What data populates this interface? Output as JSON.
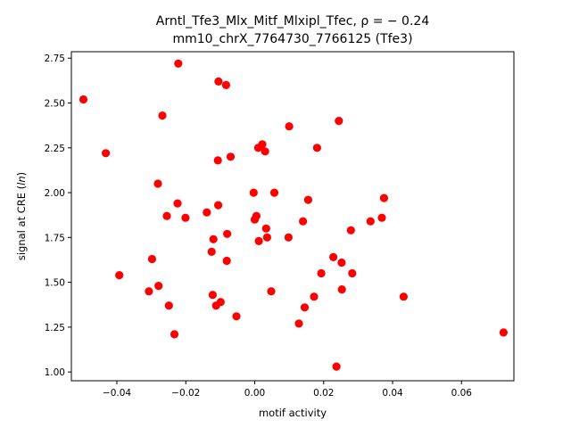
{
  "chart_data": {
    "type": "scatter",
    "title_line1": "Arntl_Tfe3_Mlx_Mitf_Mlxipl_Tfec, ρ = − 0.24",
    "title_line2": "mm10_chrX_7764730_7766125 (Tfe3)",
    "xlabel": "motif activity",
    "ylabel_prefix": "signal at CRE (",
    "ylabel_italic": "ln",
    "ylabel_suffix": ")",
    "xlim": [
      -0.0532,
      0.0752
    ],
    "ylim": [
      0.951,
      2.786
    ],
    "xticks": [
      -0.04,
      -0.02,
      0.0,
      0.02,
      0.04,
      0.06
    ],
    "xtick_labels": [
      "−0.04",
      "−0.02",
      "0.00",
      "0.02",
      "0.04",
      "0.06"
    ],
    "yticks": [
      1.0,
      1.25,
      1.5,
      1.75,
      2.0,
      2.25,
      2.5,
      2.75
    ],
    "ytick_labels": [
      "1.00",
      "1.25",
      "1.50",
      "1.75",
      "2.00",
      "2.25",
      "2.50",
      "2.75"
    ],
    "marker_color": "#ff0000",
    "grid": false,
    "points": [
      {
        "x": -0.0497,
        "y": 2.52
      },
      {
        "x": -0.0432,
        "y": 2.22
      },
      {
        "x": -0.0393,
        "y": 1.54
      },
      {
        "x": -0.0307,
        "y": 1.45
      },
      {
        "x": -0.0298,
        "y": 1.63
      },
      {
        "x": -0.0281,
        "y": 2.05
      },
      {
        "x": -0.0279,
        "y": 1.48
      },
      {
        "x": -0.0268,
        "y": 2.43
      },
      {
        "x": -0.0255,
        "y": 1.87
      },
      {
        "x": -0.0249,
        "y": 1.37
      },
      {
        "x": -0.0233,
        "y": 1.21
      },
      {
        "x": -0.0222,
        "y": 2.72
      },
      {
        "x": -0.0224,
        "y": 1.94
      },
      {
        "x": -0.0201,
        "y": 1.86
      },
      {
        "x": -0.0139,
        "y": 1.89
      },
      {
        "x": -0.0125,
        "y": 1.67
      },
      {
        "x": -0.0122,
        "y": 1.43
      },
      {
        "x": -0.012,
        "y": 1.74
      },
      {
        "x": -0.0112,
        "y": 1.37
      },
      {
        "x": -0.0107,
        "y": 2.18
      },
      {
        "x": -0.0105,
        "y": 2.62
      },
      {
        "x": -0.0106,
        "y": 1.93
      },
      {
        "x": -0.0099,
        "y": 1.39
      },
      {
        "x": -0.0083,
        "y": 2.6
      },
      {
        "x": -0.0081,
        "y": 1.62
      },
      {
        "x": -0.008,
        "y": 1.77
      },
      {
        "x": -0.007,
        "y": 2.2
      },
      {
        "x": -0.0053,
        "y": 1.31
      },
      {
        "x": -0.0003,
        "y": 2.0
      },
      {
        "x": 0.0,
        "y": 1.85
      },
      {
        "x": 0.0005,
        "y": 1.87
      },
      {
        "x": 0.001,
        "y": 2.25
      },
      {
        "x": 0.0012,
        "y": 1.73
      },
      {
        "x": 0.0022,
        "y": 2.27
      },
      {
        "x": 0.003,
        "y": 2.23
      },
      {
        "x": 0.0033,
        "y": 1.8
      },
      {
        "x": 0.0036,
        "y": 1.75
      },
      {
        "x": 0.0048,
        "y": 1.45
      },
      {
        "x": 0.0057,
        "y": 2.0
      },
      {
        "x": 0.0098,
        "y": 1.75
      },
      {
        "x": 0.01,
        "y": 2.37
      },
      {
        "x": 0.0128,
        "y": 1.27
      },
      {
        "x": 0.014,
        "y": 1.84
      },
      {
        "x": 0.0145,
        "y": 1.36
      },
      {
        "x": 0.0155,
        "y": 1.96
      },
      {
        "x": 0.0172,
        "y": 1.42
      },
      {
        "x": 0.0181,
        "y": 2.25
      },
      {
        "x": 0.0193,
        "y": 1.55
      },
      {
        "x": 0.0228,
        "y": 1.64
      },
      {
        "x": 0.0237,
        "y": 1.03
      },
      {
        "x": 0.0244,
        "y": 2.4
      },
      {
        "x": 0.0252,
        "y": 1.61
      },
      {
        "x": 0.0253,
        "y": 1.46
      },
      {
        "x": 0.0279,
        "y": 1.79
      },
      {
        "x": 0.0283,
        "y": 1.55
      },
      {
        "x": 0.0336,
        "y": 1.84
      },
      {
        "x": 0.0369,
        "y": 1.86
      },
      {
        "x": 0.0375,
        "y": 1.97
      },
      {
        "x": 0.0432,
        "y": 1.42
      },
      {
        "x": 0.0722,
        "y": 1.22
      }
    ]
  }
}
